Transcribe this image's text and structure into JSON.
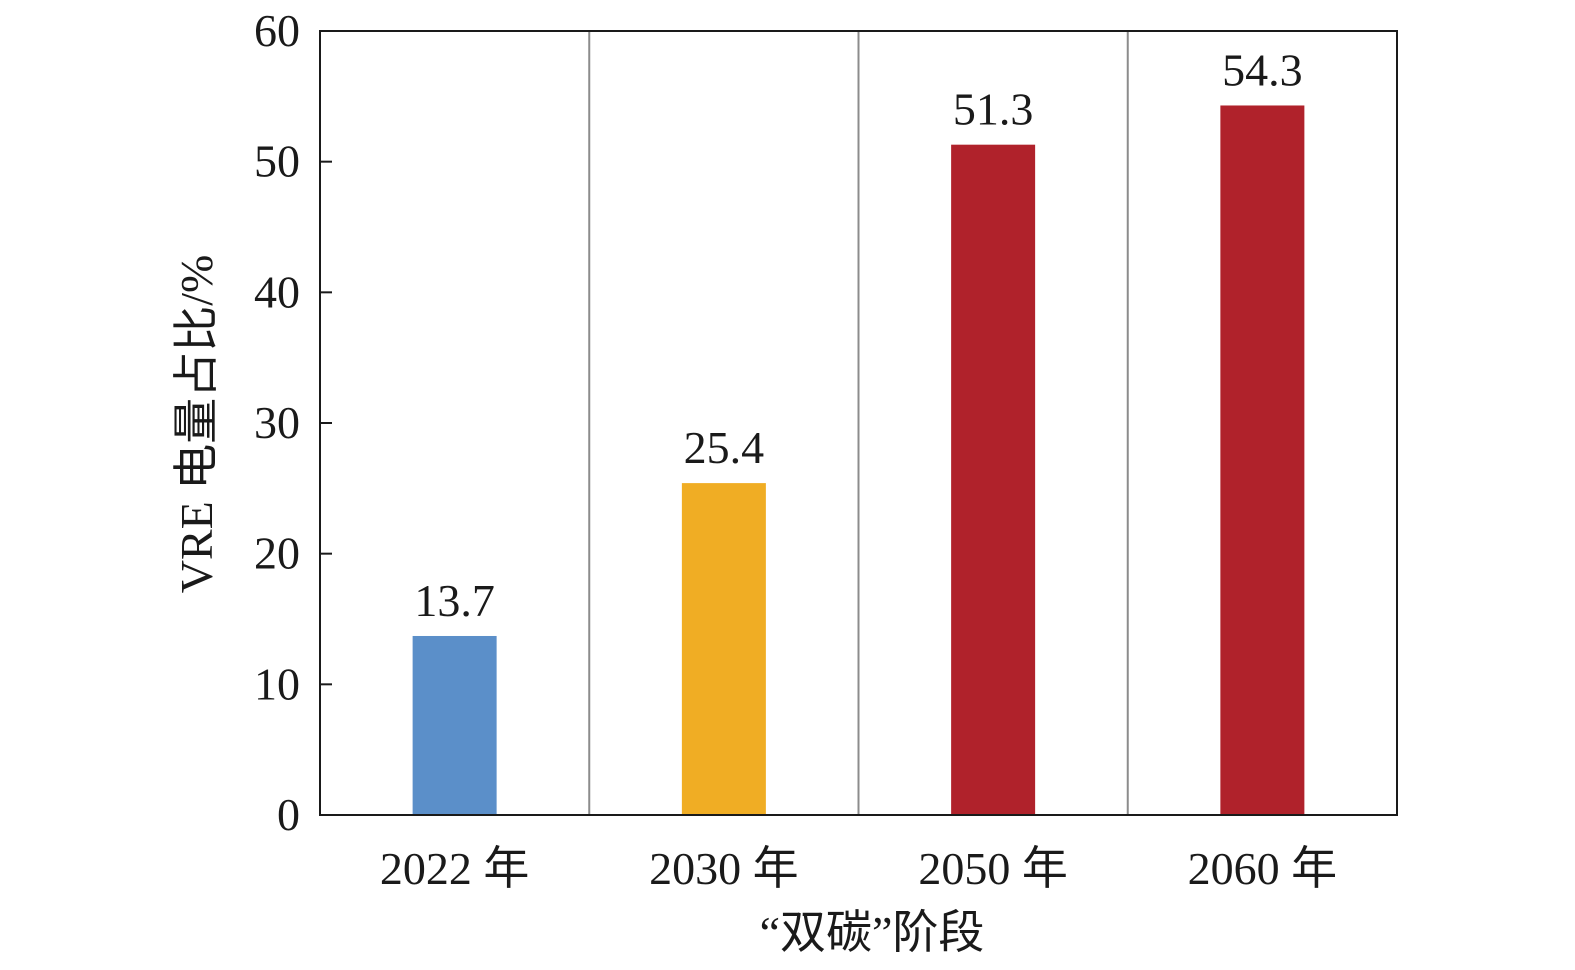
{
  "chart_data": {
    "type": "bar",
    "title": "",
    "xlabel": "“双碳”阶段",
    "ylabel": "VRE 电量占比/%",
    "categories": [
      "2022 年",
      "2030 年",
      "2050 年",
      "2060 年"
    ],
    "values": [
      13.7,
      25.4,
      51.3,
      54.3
    ],
    "data_labels": [
      "13.7",
      "25.4",
      "51.3",
      "54.3"
    ],
    "ylim": [
      0,
      60
    ],
    "yticks": [
      0,
      10,
      20,
      30,
      40,
      50,
      60
    ],
    "ytick_labels": [
      "0",
      "10",
      "20",
      "30",
      "40",
      "50",
      "60"
    ],
    "bar_colors": [
      "#5b8fc9",
      "#f0ad24",
      "#b0222b",
      "#b0222b"
    ],
    "grid": "vertical category separators",
    "legend": "none"
  }
}
